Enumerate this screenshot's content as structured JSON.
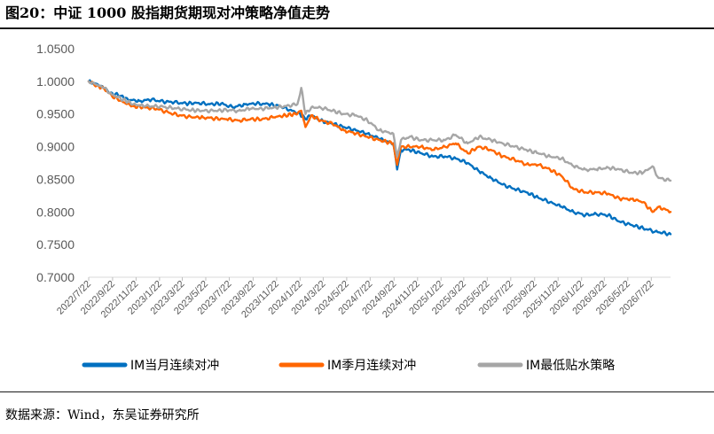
{
  "figure": {
    "title": "图20：中证 1000 股指期货期现对冲策略净值走势",
    "source": "数据来源：Wind，东吴证券研究所"
  },
  "colors": {
    "series_1": "#0070C0",
    "series_2": "#FF6600",
    "series_3": "#A6A6A6",
    "axis_text": "#595959",
    "rule": "#1a1a1a"
  },
  "chart_data": {
    "type": "line",
    "title": "",
    "xlabel": "",
    "ylabel": "",
    "ylim": [
      0.7,
      1.05
    ],
    "y_ticks": [
      "0.7000",
      "0.7500",
      "0.8000",
      "0.8500",
      "0.9000",
      "0.9500",
      "1.0000",
      "1.0500"
    ],
    "grid": false,
    "legend_position": "bottom",
    "x_tick_labels": [
      "2022/7/22",
      "2022/9/22",
      "2022/11/22",
      "2023/1/22",
      "2023/3/22",
      "2023/5/22",
      "2023/7/22",
      "2023/9/22",
      "2023/11/22",
      "2024/1/22",
      "2024/3/22",
      "2024/5/22",
      "2024/7/22",
      "2024/9/22",
      "2024/11/22",
      "2025/1/22",
      "2025/3/22",
      "2025/5/22",
      "2025/7/22",
      "2025/9/22",
      "2025/11/22",
      "2026/1/22",
      "2026/3/22",
      "2026/5/22",
      "2026/7/22"
    ],
    "x_range": [
      "2022-07-22",
      "2026-09-10"
    ],
    "series": [
      {
        "name": "IM当月连续对冲",
        "color": "#0070C0",
        "points": [
          [
            "2022-07-22",
            1.0
          ],
          [
            "2022-08-15",
            0.995
          ],
          [
            "2022-09-01",
            0.99
          ],
          [
            "2022-09-15",
            0.982
          ],
          [
            "2022-10-15",
            0.978
          ],
          [
            "2022-11-01",
            0.972
          ],
          [
            "2022-12-01",
            0.97
          ],
          [
            "2023-01-01",
            0.972
          ],
          [
            "2023-02-01",
            0.969
          ],
          [
            "2023-03-01",
            0.968
          ],
          [
            "2023-04-01",
            0.966
          ],
          [
            "2023-05-01",
            0.967
          ],
          [
            "2023-06-01",
            0.965
          ],
          [
            "2023-07-01",
            0.966
          ],
          [
            "2023-08-01",
            0.96
          ],
          [
            "2023-09-01",
            0.965
          ],
          [
            "2023-10-01",
            0.966
          ],
          [
            "2023-11-01",
            0.965
          ],
          [
            "2023-12-01",
            0.962
          ],
          [
            "2024-01-01",
            0.955
          ],
          [
            "2024-01-22",
            0.95
          ],
          [
            "2024-02-05",
            0.942
          ],
          [
            "2024-02-20",
            0.948
          ],
          [
            "2024-03-15",
            0.94
          ],
          [
            "2024-04-15",
            0.935
          ],
          [
            "2024-05-15",
            0.93
          ],
          [
            "2024-06-15",
            0.925
          ],
          [
            "2024-07-15",
            0.92
          ],
          [
            "2024-08-15",
            0.912
          ],
          [
            "2024-09-20",
            0.905
          ],
          [
            "2024-09-30",
            0.865
          ],
          [
            "2024-10-10",
            0.895
          ],
          [
            "2024-11-01",
            0.895
          ],
          [
            "2024-12-01",
            0.89
          ],
          [
            "2025-01-01",
            0.885
          ],
          [
            "2025-02-01",
            0.885
          ],
          [
            "2025-03-01",
            0.882
          ],
          [
            "2025-04-01",
            0.875
          ],
          [
            "2025-05-01",
            0.862
          ],
          [
            "2025-06-01",
            0.852
          ],
          [
            "2025-07-01",
            0.842
          ],
          [
            "2025-08-01",
            0.835
          ],
          [
            "2025-09-01",
            0.83
          ],
          [
            "2025-10-01",
            0.822
          ],
          [
            "2025-11-01",
            0.815
          ],
          [
            "2025-12-01",
            0.808
          ],
          [
            "2026-01-01",
            0.8
          ],
          [
            "2026-02-01",
            0.795
          ],
          [
            "2026-03-01",
            0.797
          ],
          [
            "2026-04-01",
            0.795
          ],
          [
            "2026-05-01",
            0.785
          ],
          [
            "2026-06-01",
            0.78
          ],
          [
            "2026-07-01",
            0.775
          ],
          [
            "2026-08-01",
            0.77
          ],
          [
            "2026-09-10",
            0.766
          ]
        ]
      },
      {
        "name": "IM季月连续对冲",
        "color": "#FF6600",
        "points": [
          [
            "2022-07-22",
            1.0
          ],
          [
            "2022-08-15",
            0.993
          ],
          [
            "2022-09-01",
            0.988
          ],
          [
            "2022-09-20",
            0.978
          ],
          [
            "2022-10-20",
            0.968
          ],
          [
            "2022-11-15",
            0.962
          ],
          [
            "2022-12-15",
            0.96
          ],
          [
            "2023-01-15",
            0.958
          ],
          [
            "2023-02-15",
            0.952
          ],
          [
            "2023-03-15",
            0.948
          ],
          [
            "2023-04-15",
            0.945
          ],
          [
            "2023-05-15",
            0.945
          ],
          [
            "2023-06-15",
            0.943
          ],
          [
            "2023-07-15",
            0.942
          ],
          [
            "2023-08-15",
            0.94
          ],
          [
            "2023-09-15",
            0.942
          ],
          [
            "2023-10-15",
            0.942
          ],
          [
            "2023-11-15",
            0.945
          ],
          [
            "2023-12-15",
            0.948
          ],
          [
            "2024-01-10",
            0.95
          ],
          [
            "2024-01-25",
            0.955
          ],
          [
            "2024-02-05",
            0.93
          ],
          [
            "2024-02-20",
            0.948
          ],
          [
            "2024-03-15",
            0.94
          ],
          [
            "2024-04-15",
            0.935
          ],
          [
            "2024-05-15",
            0.925
          ],
          [
            "2024-06-15",
            0.92
          ],
          [
            "2024-07-15",
            0.915
          ],
          [
            "2024-08-15",
            0.91
          ],
          [
            "2024-09-20",
            0.905
          ],
          [
            "2024-09-30",
            0.872
          ],
          [
            "2024-10-10",
            0.9
          ],
          [
            "2024-11-01",
            0.9
          ],
          [
            "2024-12-01",
            0.9
          ],
          [
            "2025-01-01",
            0.895
          ],
          [
            "2025-02-01",
            0.9
          ],
          [
            "2025-03-01",
            0.905
          ],
          [
            "2025-04-01",
            0.89
          ],
          [
            "2025-05-01",
            0.9
          ],
          [
            "2025-06-01",
            0.895
          ],
          [
            "2025-07-01",
            0.885
          ],
          [
            "2025-08-01",
            0.88
          ],
          [
            "2025-09-01",
            0.873
          ],
          [
            "2025-10-01",
            0.872
          ],
          [
            "2025-11-01",
            0.865
          ],
          [
            "2025-12-01",
            0.855
          ],
          [
            "2026-01-01",
            0.835
          ],
          [
            "2026-02-01",
            0.83
          ],
          [
            "2026-03-01",
            0.83
          ],
          [
            "2026-04-01",
            0.828
          ],
          [
            "2026-05-01",
            0.82
          ],
          [
            "2026-06-01",
            0.82
          ],
          [
            "2026-07-01",
            0.815
          ],
          [
            "2026-07-25",
            0.8
          ],
          [
            "2026-08-10",
            0.808
          ],
          [
            "2026-09-10",
            0.8
          ]
        ]
      },
      {
        "name": "IM最低贴水策略",
        "color": "#A6A6A6",
        "points": [
          [
            "2022-07-22",
            1.0
          ],
          [
            "2022-08-15",
            0.994
          ],
          [
            "2022-09-01",
            0.99
          ],
          [
            "2022-09-20",
            0.98
          ],
          [
            "2022-10-20",
            0.972
          ],
          [
            "2022-11-15",
            0.965
          ],
          [
            "2022-12-15",
            0.962
          ],
          [
            "2023-01-15",
            0.962
          ],
          [
            "2023-02-15",
            0.96
          ],
          [
            "2023-03-15",
            0.958
          ],
          [
            "2023-04-15",
            0.956
          ],
          [
            "2023-05-15",
            0.955
          ],
          [
            "2023-06-15",
            0.955
          ],
          [
            "2023-07-15",
            0.956
          ],
          [
            "2023-08-15",
            0.955
          ],
          [
            "2023-09-15",
            0.958
          ],
          [
            "2023-10-15",
            0.958
          ],
          [
            "2023-11-15",
            0.96
          ],
          [
            "2023-12-15",
            0.962
          ],
          [
            "2024-01-15",
            0.965
          ],
          [
            "2024-01-25",
            0.99
          ],
          [
            "2024-02-05",
            0.95
          ],
          [
            "2024-02-20",
            0.96
          ],
          [
            "2024-03-15",
            0.96
          ],
          [
            "2024-04-15",
            0.955
          ],
          [
            "2024-05-15",
            0.95
          ],
          [
            "2024-06-15",
            0.948
          ],
          [
            "2024-07-15",
            0.94
          ],
          [
            "2024-08-15",
            0.925
          ],
          [
            "2024-09-20",
            0.92
          ],
          [
            "2024-09-30",
            0.885
          ],
          [
            "2024-10-10",
            0.91
          ],
          [
            "2024-11-01",
            0.915
          ],
          [
            "2024-12-01",
            0.91
          ],
          [
            "2025-01-01",
            0.91
          ],
          [
            "2025-02-01",
            0.91
          ],
          [
            "2025-03-01",
            0.918
          ],
          [
            "2025-04-01",
            0.905
          ],
          [
            "2025-05-01",
            0.915
          ],
          [
            "2025-06-01",
            0.91
          ],
          [
            "2025-07-01",
            0.905
          ],
          [
            "2025-08-01",
            0.9
          ],
          [
            "2025-09-01",
            0.895
          ],
          [
            "2025-10-01",
            0.89
          ],
          [
            "2025-11-01",
            0.885
          ],
          [
            "2025-12-01",
            0.882
          ],
          [
            "2026-01-01",
            0.87
          ],
          [
            "2026-02-01",
            0.865
          ],
          [
            "2026-03-01",
            0.865
          ],
          [
            "2026-04-01",
            0.868
          ],
          [
            "2026-05-01",
            0.865
          ],
          [
            "2026-06-01",
            0.86
          ],
          [
            "2026-07-01",
            0.86
          ],
          [
            "2026-07-25",
            0.87
          ],
          [
            "2026-08-10",
            0.852
          ],
          [
            "2026-09-10",
            0.848
          ]
        ]
      }
    ]
  }
}
